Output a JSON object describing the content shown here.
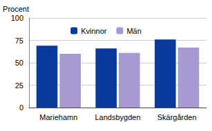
{
  "chart_data": {
    "type": "bar",
    "ylabel": "Procent",
    "categories": [
      "Mariehamn",
      "Landsbygden",
      "Skärgården"
    ],
    "series": [
      {
        "name": "Kvinnor",
        "color": "#0a3a9c",
        "values": [
          69,
          66,
          76
        ]
      },
      {
        "name": "Män",
        "color": "#a899d2",
        "values": [
          60,
          61,
          67
        ]
      }
    ],
    "ylim": [
      0,
      100
    ],
    "yticks": [
      0,
      25,
      50,
      75,
      100
    ],
    "grid": true,
    "legend": "top"
  }
}
